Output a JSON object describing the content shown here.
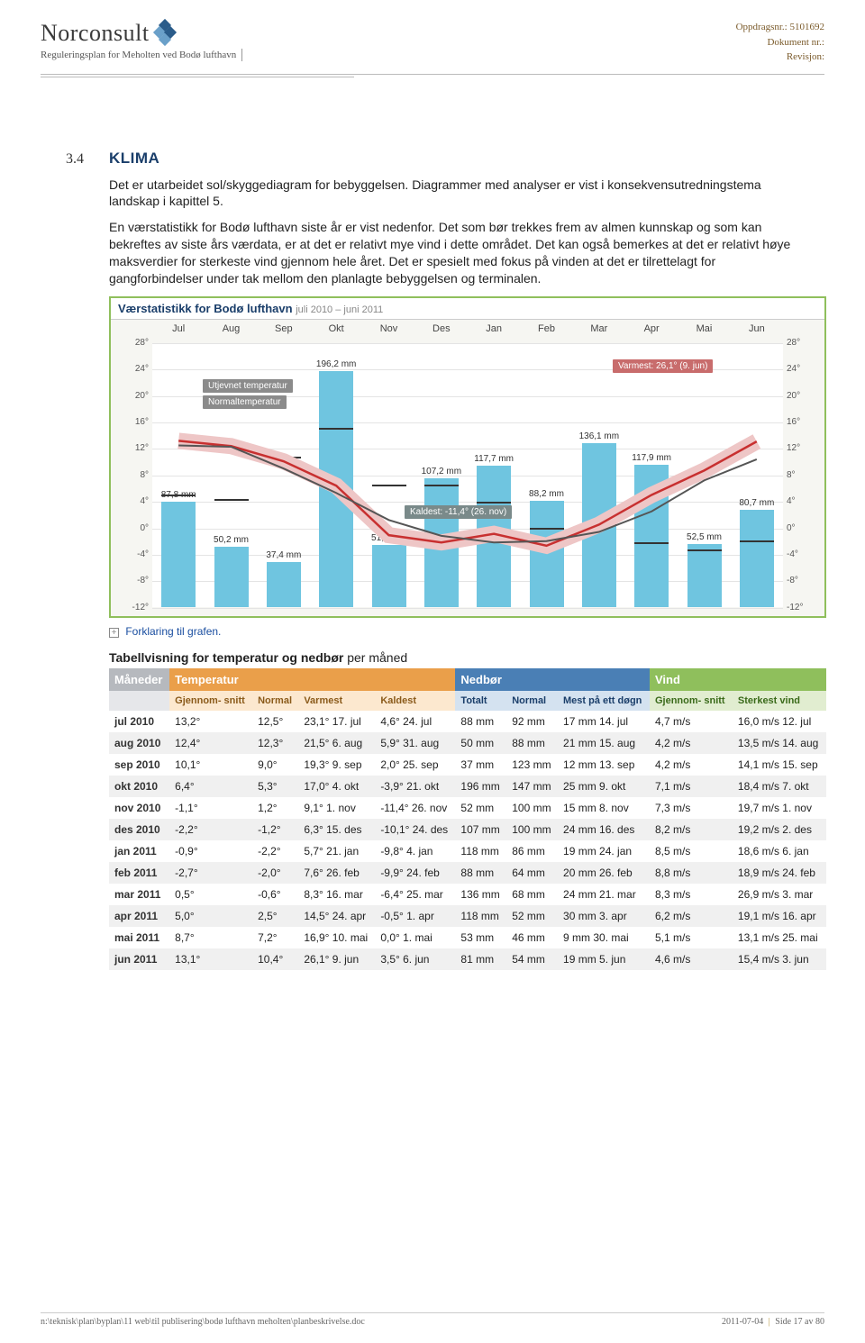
{
  "header": {
    "logo_text": "Norconsult",
    "subtitle": "Reguleringsplan for Meholten ved Bodø lufthavn",
    "right_oppdrag": "Oppdragsnr.: 5101692",
    "right_dokument": "Dokument nr.:",
    "right_revisjon": "Revisjon:"
  },
  "section": {
    "num": "3.4",
    "title": "KLIMA"
  },
  "paragraphs": {
    "p1": "Det er utarbeidet sol/skyggediagram for bebyggelsen. Diagrammer med analyser er vist i konsekvensutredningstema landskap i kapittel 5.",
    "p2": "En værstatistikk for Bodø lufthavn siste år er vist nedenfor. Det som bør trekkes frem av almen kunnskap og som kan bekreftes av siste års værdata, er at det er relativt mye vind i dette området. Det kan også bemerkes at det er relativt høye maksverdier for sterkeste vind gjennom hele året. Det er spesielt med fokus på vinden at det er tilrettelagt for gangforbindelser under tak mellom den planlagte bebyggelsen og terminalen."
  },
  "chart": {
    "title_bold": "Værstatistikk for Bodø lufthavn",
    "title_sub": "juli 2010 – juni 2011",
    "months": [
      "Jul",
      "Aug",
      "Sep",
      "Okt",
      "Nov",
      "Des",
      "Jan",
      "Feb",
      "Mar",
      "Apr",
      "Mai",
      "Jun"
    ],
    "yticks_temp": [
      "28°",
      "24°",
      "20°",
      "16°",
      "12°",
      "8°",
      "4°",
      "0°",
      "-4°",
      "-8°",
      "-12°"
    ],
    "temp_ymax": 28,
    "temp_ymin": -12,
    "precip_max": 220,
    "precip_mm": [
      87.8,
      50.2,
      37.4,
      196.2,
      51.7,
      107.2,
      117.7,
      88.2,
      136.1,
      117.9,
      52.5,
      80.7
    ],
    "precip_labels": [
      "87,8 mm",
      "50,2 mm",
      "37,4 mm",
      "196,2 mm",
      "51,7 mm",
      "107,2 mm",
      "117,7 mm",
      "88,2 mm",
      "136,1 mm",
      "117,9 mm",
      "52,5 mm",
      "80,7 mm"
    ],
    "precip_normal_mm": [
      92,
      88,
      123,
      147,
      100,
      100,
      86,
      64,
      68,
      52,
      46,
      54
    ],
    "avg_temp": [
      13.2,
      12.4,
      10.1,
      6.4,
      -1.1,
      -2.2,
      -0.9,
      -2.7,
      0.5,
      5.0,
      8.7,
      13.1
    ],
    "norm_temp": [
      12.5,
      12.3,
      9.0,
      5.3,
      1.2,
      -1.2,
      -2.2,
      -2.0,
      -0.6,
      2.5,
      7.2,
      10.4
    ],
    "tag_utjevnet": "Utjevnet temperatur",
    "tag_normal": "Normaltemperatur",
    "tag_warm": "Varmest: 26,1° (9. jun)",
    "tag_cold": "Kaldest: -11,4° (26. nov)",
    "forklaring": "Forklaring til grafen.",
    "colors": {
      "bar": "#6fc5e0",
      "grid": "#e4e4e4",
      "avg_line": "#c83030",
      "norm_line": "#555555",
      "bg": "#f6f6f2"
    }
  },
  "table": {
    "title_bold": "Tabellvisning for temperatur og nedbør",
    "title_rest": " per måned",
    "group_headers": {
      "m": "Måneder",
      "t": "Temperatur",
      "n": "Nedbør",
      "v": "Vind"
    },
    "sub_headers": {
      "t": [
        "Gjennom-\nsnitt",
        "Normal",
        "Varmest",
        "Kaldest"
      ],
      "n": [
        "Totalt",
        "Normal",
        "Mest på\nett døgn"
      ],
      "v": [
        "Gjennom-\nsnitt",
        "Sterkest\nvind"
      ]
    },
    "rows": [
      {
        "m": "jul 2010",
        "t": [
          "13,2°",
          "12,5°",
          "23,1° 17. jul",
          "4,6° 24. jul"
        ],
        "n": [
          "88 mm",
          "92 mm",
          "17 mm 14. jul"
        ],
        "v": [
          "4,7 m/s",
          "16,0 m/s 12. jul"
        ]
      },
      {
        "m": "aug 2010",
        "t": [
          "12,4°",
          "12,3°",
          "21,5° 6. aug",
          "5,9° 31. aug"
        ],
        "n": [
          "50 mm",
          "88 mm",
          "21 mm 15. aug"
        ],
        "v": [
          "4,2 m/s",
          "13,5 m/s 14. aug"
        ]
      },
      {
        "m": "sep 2010",
        "t": [
          "10,1°",
          "9,0°",
          "19,3° 9. sep",
          "2,0° 25. sep"
        ],
        "n": [
          "37 mm",
          "123 mm",
          "12 mm 13. sep"
        ],
        "v": [
          "4,2 m/s",
          "14,1 m/s 15. sep"
        ]
      },
      {
        "m": "okt 2010",
        "t": [
          "6,4°",
          "5,3°",
          "17,0° 4. okt",
          "-3,9° 21. okt"
        ],
        "n": [
          "196 mm",
          "147 mm",
          "25 mm 9. okt"
        ],
        "v": [
          "7,1 m/s",
          "18,4 m/s 7. okt"
        ]
      },
      {
        "m": "nov 2010",
        "t": [
          "-1,1°",
          "1,2°",
          "9,1° 1. nov",
          "-11,4° 26. nov"
        ],
        "n": [
          "52 mm",
          "100 mm",
          "15 mm 8. nov"
        ],
        "v": [
          "7,3 m/s",
          "19,7 m/s 1. nov"
        ]
      },
      {
        "m": "des 2010",
        "t": [
          "-2,2°",
          "-1,2°",
          "6,3° 15. des",
          "-10,1° 24. des"
        ],
        "n": [
          "107 mm",
          "100 mm",
          "24 mm 16. des"
        ],
        "v": [
          "8,2 m/s",
          "19,2 m/s 2. des"
        ]
      },
      {
        "m": "jan 2011",
        "t": [
          "-0,9°",
          "-2,2°",
          "5,7° 21. jan",
          "-9,8° 4. jan"
        ],
        "n": [
          "118 mm",
          "86 mm",
          "19 mm 24. jan"
        ],
        "v": [
          "8,5 m/s",
          "18,6 m/s 6. jan"
        ]
      },
      {
        "m": "feb 2011",
        "t": [
          "-2,7°",
          "-2,0°",
          "7,6° 26. feb",
          "-9,9° 24. feb"
        ],
        "n": [
          "88 mm",
          "64 mm",
          "20 mm 26. feb"
        ],
        "v": [
          "8,8 m/s",
          "18,9 m/s 24. feb"
        ]
      },
      {
        "m": "mar 2011",
        "t": [
          "0,5°",
          "-0,6°",
          "8,3° 16. mar",
          "-6,4° 25. mar"
        ],
        "n": [
          "136 mm",
          "68 mm",
          "24 mm 21. mar"
        ],
        "v": [
          "8,3 m/s",
          "26,9 m/s 3. mar"
        ]
      },
      {
        "m": "apr 2011",
        "t": [
          "5,0°",
          "2,5°",
          "14,5° 24. apr",
          "-0,5° 1. apr"
        ],
        "n": [
          "118 mm",
          "52 mm",
          "30 mm 3. apr"
        ],
        "v": [
          "6,2 m/s",
          "19,1 m/s 16. apr"
        ]
      },
      {
        "m": "mai 2011",
        "t": [
          "8,7°",
          "7,2°",
          "16,9° 10. mai",
          "0,0° 1. mai"
        ],
        "n": [
          "53 mm",
          "46 mm",
          "9 mm 30. mai"
        ],
        "v": [
          "5,1 m/s",
          "13,1 m/s 25. mai"
        ]
      },
      {
        "m": "jun 2011",
        "t": [
          "13,1°",
          "10,4°",
          "26,1° 9. jun",
          "3,5° 6. jun"
        ],
        "n": [
          "81 mm",
          "54 mm",
          "19 mm 5. jun"
        ],
        "v": [
          "4,6 m/s",
          "15,4 m/s 3. jun"
        ]
      }
    ]
  },
  "footer": {
    "path": "n:\\teknisk\\plan\\byplan\\11 web\\til publisering\\bodø lufthavn meholten\\planbeskrivelse.doc",
    "date": "2011-07-04",
    "page": "Side 17 av 80"
  }
}
